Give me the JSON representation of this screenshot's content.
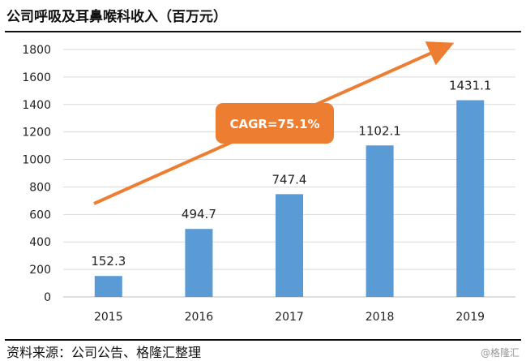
{
  "title": "公司呼吸及耳鼻喉科收入（百万元）",
  "source": "资料来源：公司公告、格隆汇整理",
  "watermark": "@格隆汇",
  "colors": {
    "bar": "#5b9bd5",
    "arrow": "#ed7d31",
    "callout": "#ed7d31",
    "grid": "#d9d9d9"
  },
  "annotation": {
    "text": "CAGR=75.1%"
  },
  "chart_data": {
    "type": "bar",
    "categories": [
      "2015",
      "2016",
      "2017",
      "2018",
      "2019"
    ],
    "values": [
      152.3,
      494.7,
      747.4,
      1102.1,
      1431.1
    ],
    "labels": [
      "152.3",
      "494.7",
      "747.4",
      "1102.1",
      "1431.1"
    ],
    "ylim": [
      0,
      1800
    ],
    "yticks": [
      0,
      200,
      400,
      600,
      800,
      1000,
      1200,
      1400,
      1600,
      1800
    ],
    "grid": true,
    "legend": "none"
  }
}
